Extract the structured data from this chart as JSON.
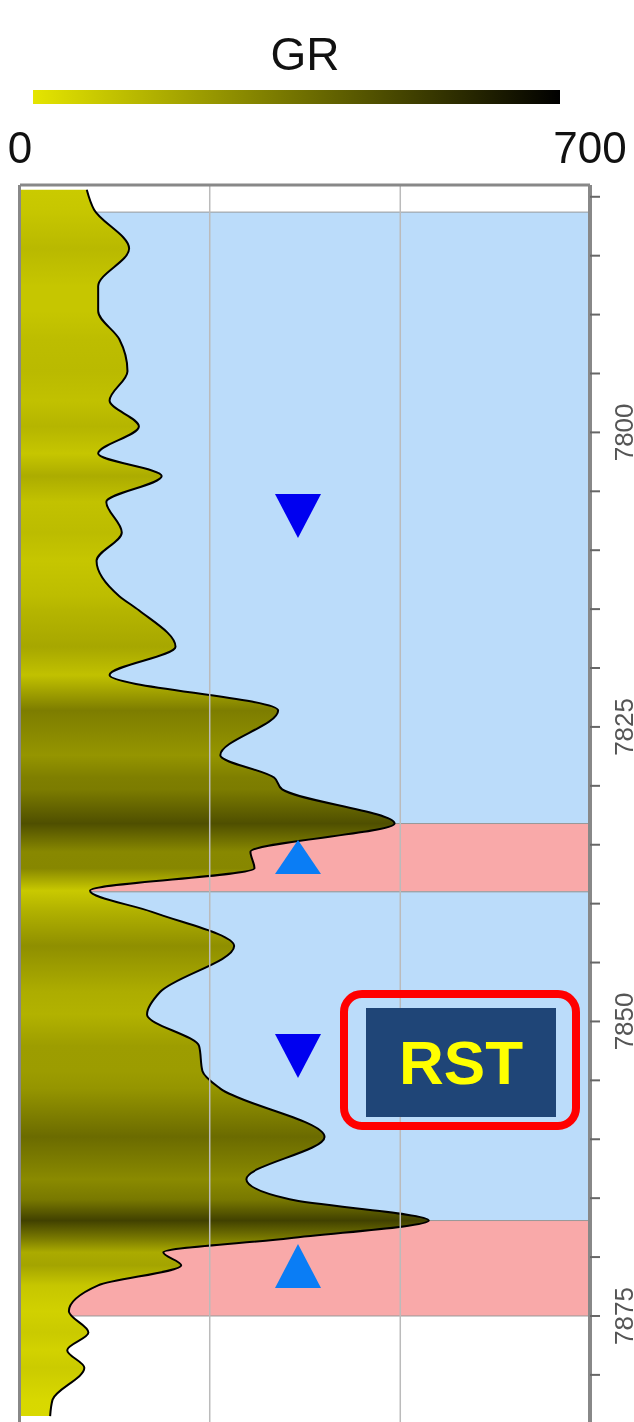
{
  "chart_data": {
    "type": "area",
    "orientation": "horizontal",
    "xlabel": "GR",
    "xlim": [
      0,
      700
    ],
    "xticks": [
      0,
      {
        "value": 233,
        "label": null
      },
      {
        "value": 467,
        "label": null
      },
      700
    ],
    "ylim": [
      7884,
      7779
    ],
    "yticks": [
      {
        "value": 7780,
        "label": null
      },
      {
        "value": 7785,
        "label": null
      },
      {
        "value": 7790,
        "label": null
      },
      {
        "value": 7795,
        "label": null
      },
      7800,
      {
        "value": 7805,
        "label": null
      },
      {
        "value": 7810,
        "label": null
      },
      {
        "value": 7815,
        "label": null
      },
      {
        "value": 7820,
        "label": null
      },
      7825,
      {
        "value": 7830,
        "label": null
      },
      {
        "value": 7835,
        "label": null
      },
      {
        "value": 7840,
        "label": null
      },
      {
        "value": 7845,
        "label": null
      },
      7850,
      {
        "value": 7855,
        "label": null
      },
      {
        "value": 7860,
        "label": null
      },
      {
        "value": 7865,
        "label": null
      },
      {
        "value": 7870,
        "label": null
      },
      7875,
      {
        "value": 7880,
        "label": null
      }
    ],
    "grid": "x",
    "series": [
      {
        "color": "#000000",
        "x": [
          7779.4,
          7781.1,
          7784.4,
          7787.6,
          7789.7,
          7792.1,
          7794.8,
          7797.3,
          7799.5,
          7801.8,
          7803.7,
          7805.9,
          7808.5,
          7810.9,
          7813.9,
          7815.1,
          7818.2,
          7820.6,
          7823.6,
          7827.4,
          7829.3,
          7830.3,
          7833.2,
          7835.6,
          7837.0,
          7838.9,
          7840.7,
          7843.6,
          7847.5,
          7849.4,
          7852.1,
          7854.2,
          7855.7,
          7859.8,
          7863.4,
          7865.1,
          7866.9,
          7868.4,
          7869.6,
          7870.7,
          7872.4,
          7874.6,
          7876.4,
          7877.9,
          7879.4,
          7882.1,
          7883.5
        ],
        "values": [
          82,
          91,
          134,
          96,
          96,
          122,
          132,
          110,
          146,
          96,
          174,
          106,
          125,
          94,
          122,
          146,
          191,
          110,
          317,
          246,
          312,
          322,
          460,
          283,
          288,
          86,
          162,
          263,
          172,
          156,
          220,
          224,
          246,
          374,
          278,
          331,
          502,
          331,
          176,
          198,
          96,
          60,
          84,
          58,
          79,
          40,
          37
        ]
      }
    ],
    "bands": [
      {
        "axis": "y",
        "from": 7781.3,
        "to": 7833.2,
        "color": "#bbdcfa"
      },
      {
        "axis": "y",
        "from": 7833.2,
        "to": 7839.0,
        "color": "#f9a9a9"
      },
      {
        "axis": "y",
        "from": 7839.0,
        "to": 7866.9,
        "color": "#bbdcfa"
      },
      {
        "axis": "y",
        "from": 7866.9,
        "to": 7875.0,
        "color": "#f9a9a9"
      }
    ],
    "annotations": [
      "RST"
    ]
  }
}
